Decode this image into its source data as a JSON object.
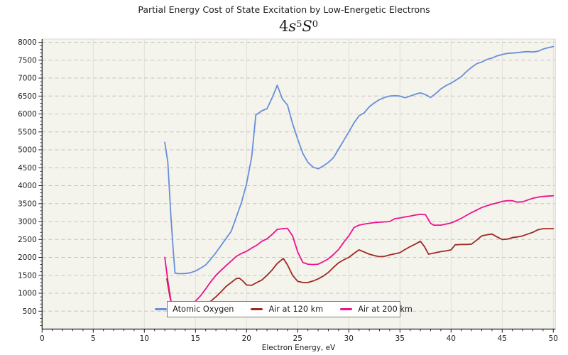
{
  "figure": {
    "title": "Partial Energy Cost of State Excitation by Low-Energetic Electrons",
    "subtitle_text": "4s⁵S⁰",
    "subtitle_parts": {
      "coef": "4",
      "var1": "s",
      "sup1": "5",
      "var2": "S",
      "sup2": "0"
    },
    "xlabel": "Electron Energy, eV"
  },
  "colors": {
    "figure_background": "#ffffff",
    "plot_background": "#f4f3ec",
    "h_gridline": "#c3c3c3",
    "v_gridline": "#e1e0d8",
    "spine_dark": "#1a1a1a",
    "spine_light": "#d9d8d0",
    "tick_text": "#1c1c1c",
    "legend_border": "#7b7b7b"
  },
  "chart_data": {
    "type": "line",
    "title": "Partial Energy Cost of State Excitation by Low-Energetic Electrons",
    "subtitle": "4s⁵S⁰",
    "xlabel": "Electron Energy, eV",
    "ylabel": "",
    "xlim": [
      0,
      50.2
    ],
    "ylim": [
      0,
      8090
    ],
    "x_major_ticks": [
      0,
      5,
      10,
      15,
      20,
      25,
      30,
      35,
      40,
      45,
      50
    ],
    "x_minor_step": 1,
    "y_major_ticks": [
      500,
      1000,
      1500,
      2000,
      2500,
      3000,
      3500,
      4000,
      4500,
      5000,
      5500,
      6000,
      6500,
      7000,
      7500,
      8000
    ],
    "y_minor_step": 100,
    "grid": {
      "horizontal_style": "dashed",
      "vertical_style": "solid"
    },
    "legend_position": "bottom-center-inside",
    "series": [
      {
        "name": "Atomic Oxygen",
        "color": "#688fdb",
        "points": [
          [
            12,
            5210
          ],
          [
            12.3,
            4650
          ],
          [
            12.6,
            3150
          ],
          [
            12.8,
            2300
          ],
          [
            13,
            1560
          ],
          [
            13.5,
            1545
          ],
          [
            14,
            1550
          ],
          [
            14.5,
            1570
          ],
          [
            15,
            1620
          ],
          [
            15.5,
            1700
          ],
          [
            16,
            1790
          ],
          [
            16.5,
            1950
          ],
          [
            17,
            2130
          ],
          [
            17.5,
            2330
          ],
          [
            18,
            2530
          ],
          [
            18.5,
            2730
          ],
          [
            19,
            3130
          ],
          [
            19.5,
            3530
          ],
          [
            20,
            4060
          ],
          [
            20.5,
            4800
          ],
          [
            20.9,
            5970
          ],
          [
            21.5,
            6090
          ],
          [
            22,
            6150
          ],
          [
            22.5,
            6450
          ],
          [
            23,
            6800
          ],
          [
            23.5,
            6420
          ],
          [
            24,
            6250
          ],
          [
            24.5,
            5730
          ],
          [
            25,
            5300
          ],
          [
            25.5,
            4900
          ],
          [
            26,
            4650
          ],
          [
            26.5,
            4520
          ],
          [
            27,
            4470
          ],
          [
            27.5,
            4550
          ],
          [
            28,
            4650
          ],
          [
            28.5,
            4780
          ],
          [
            29,
            5020
          ],
          [
            29.5,
            5260
          ],
          [
            30,
            5500
          ],
          [
            30.5,
            5750
          ],
          [
            31,
            5950
          ],
          [
            31.5,
            6030
          ],
          [
            32,
            6200
          ],
          [
            32.5,
            6310
          ],
          [
            33,
            6400
          ],
          [
            33.5,
            6460
          ],
          [
            34,
            6500
          ],
          [
            34.5,
            6510
          ],
          [
            35,
            6500
          ],
          [
            35.5,
            6450
          ],
          [
            36,
            6500
          ],
          [
            36.5,
            6550
          ],
          [
            37,
            6590
          ],
          [
            37.5,
            6540
          ],
          [
            38,
            6460
          ],
          [
            38.5,
            6570
          ],
          [
            39,
            6700
          ],
          [
            39.5,
            6790
          ],
          [
            40,
            6860
          ],
          [
            40.5,
            6950
          ],
          [
            41,
            7040
          ],
          [
            41.5,
            7180
          ],
          [
            42,
            7300
          ],
          [
            42.5,
            7400
          ],
          [
            43,
            7450
          ],
          [
            43.5,
            7520
          ],
          [
            44,
            7560
          ],
          [
            44.5,
            7620
          ],
          [
            45,
            7660
          ],
          [
            45.5,
            7690
          ],
          [
            46,
            7700
          ],
          [
            46.5,
            7710
          ],
          [
            47,
            7730
          ],
          [
            47.5,
            7740
          ],
          [
            48,
            7730
          ],
          [
            48.5,
            7750
          ],
          [
            49,
            7810
          ],
          [
            49.5,
            7850
          ],
          [
            50,
            7880
          ]
        ]
      },
      {
        "name": "Air at 120 km",
        "color": "#9c2a23",
        "points": [
          [
            12.2,
            1400
          ],
          [
            12.5,
            900
          ],
          [
            12.8,
            560
          ],
          [
            13,
            470
          ],
          [
            13.5,
            430
          ],
          [
            14,
            420
          ],
          [
            14.5,
            430
          ],
          [
            15,
            460
          ],
          [
            15.5,
            530
          ],
          [
            16,
            640
          ],
          [
            16.5,
            780
          ],
          [
            17,
            900
          ],
          [
            17.5,
            1040
          ],
          [
            18,
            1190
          ],
          [
            18.5,
            1300
          ],
          [
            19,
            1410
          ],
          [
            19.3,
            1420
          ],
          [
            19.6,
            1350
          ],
          [
            20,
            1230
          ],
          [
            20.5,
            1220
          ],
          [
            21,
            1300
          ],
          [
            21.5,
            1370
          ],
          [
            22,
            1500
          ],
          [
            22.5,
            1650
          ],
          [
            23,
            1830
          ],
          [
            23.6,
            1970
          ],
          [
            24,
            1790
          ],
          [
            24.5,
            1500
          ],
          [
            25,
            1330
          ],
          [
            25.5,
            1300
          ],
          [
            26,
            1300
          ],
          [
            26.5,
            1340
          ],
          [
            27,
            1400
          ],
          [
            27.5,
            1480
          ],
          [
            28,
            1580
          ],
          [
            28.5,
            1720
          ],
          [
            29,
            1850
          ],
          [
            29.5,
            1930
          ],
          [
            30,
            2000
          ],
          [
            30.5,
            2110
          ],
          [
            31,
            2210
          ],
          [
            31.5,
            2150
          ],
          [
            32,
            2090
          ],
          [
            32.5,
            2050
          ],
          [
            33,
            2020
          ],
          [
            33.5,
            2030
          ],
          [
            34,
            2070
          ],
          [
            34.5,
            2100
          ],
          [
            35,
            2130
          ],
          [
            35.5,
            2220
          ],
          [
            36,
            2300
          ],
          [
            36.5,
            2370
          ],
          [
            37,
            2450
          ],
          [
            37.4,
            2300
          ],
          [
            37.8,
            2090
          ],
          [
            38.5,
            2130
          ],
          [
            39,
            2160
          ],
          [
            39.5,
            2180
          ],
          [
            40,
            2210
          ],
          [
            40.4,
            2350
          ],
          [
            41,
            2360
          ],
          [
            41.5,
            2360
          ],
          [
            42,
            2370
          ],
          [
            42.5,
            2480
          ],
          [
            43,
            2600
          ],
          [
            43.5,
            2630
          ],
          [
            44,
            2650
          ],
          [
            44.5,
            2570
          ],
          [
            45,
            2500
          ],
          [
            45.5,
            2510
          ],
          [
            46,
            2550
          ],
          [
            46.5,
            2570
          ],
          [
            47,
            2600
          ],
          [
            47.5,
            2650
          ],
          [
            48,
            2700
          ],
          [
            48.5,
            2770
          ],
          [
            49,
            2800
          ],
          [
            49.5,
            2800
          ],
          [
            50,
            2800
          ]
        ]
      },
      {
        "name": "Air at 200 km",
        "color": "#ec128f",
        "points": [
          [
            12,
            2000
          ],
          [
            12.3,
            1350
          ],
          [
            12.6,
            800
          ],
          [
            13,
            530
          ],
          [
            13.5,
            470
          ],
          [
            14,
            490
          ],
          [
            14.5,
            600
          ],
          [
            15,
            780
          ],
          [
            15.5,
            930
          ],
          [
            16,
            1120
          ],
          [
            16.5,
            1320
          ],
          [
            17,
            1500
          ],
          [
            17.5,
            1640
          ],
          [
            18,
            1770
          ],
          [
            18.5,
            1900
          ],
          [
            19,
            2030
          ],
          [
            19.5,
            2110
          ],
          [
            20,
            2170
          ],
          [
            20.5,
            2260
          ],
          [
            21,
            2340
          ],
          [
            21.5,
            2450
          ],
          [
            22,
            2520
          ],
          [
            22.5,
            2640
          ],
          [
            23,
            2780
          ],
          [
            23.5,
            2800
          ],
          [
            24,
            2810
          ],
          [
            24.5,
            2600
          ],
          [
            25,
            2150
          ],
          [
            25.5,
            1860
          ],
          [
            26,
            1810
          ],
          [
            26.5,
            1800
          ],
          [
            27,
            1810
          ],
          [
            27.5,
            1880
          ],
          [
            28,
            1960
          ],
          [
            28.5,
            2080
          ],
          [
            29,
            2220
          ],
          [
            29.5,
            2420
          ],
          [
            30,
            2600
          ],
          [
            30.5,
            2830
          ],
          [
            31,
            2900
          ],
          [
            31.5,
            2930
          ],
          [
            32,
            2950
          ],
          [
            32.5,
            2970
          ],
          [
            33,
            2980
          ],
          [
            33.5,
            2990
          ],
          [
            34,
            3000
          ],
          [
            34.5,
            3080
          ],
          [
            35,
            3100
          ],
          [
            35.5,
            3130
          ],
          [
            36,
            3150
          ],
          [
            36.5,
            3180
          ],
          [
            37,
            3200
          ],
          [
            37.5,
            3190
          ],
          [
            38,
            2950
          ],
          [
            38.3,
            2900
          ],
          [
            39,
            2900
          ],
          [
            39.5,
            2930
          ],
          [
            40,
            2960
          ],
          [
            40.5,
            3020
          ],
          [
            41,
            3090
          ],
          [
            41.5,
            3170
          ],
          [
            42,
            3250
          ],
          [
            42.5,
            3320
          ],
          [
            43,
            3390
          ],
          [
            43.5,
            3440
          ],
          [
            44,
            3480
          ],
          [
            44.5,
            3520
          ],
          [
            45,
            3560
          ],
          [
            45.5,
            3580
          ],
          [
            46,
            3580
          ],
          [
            46.5,
            3540
          ],
          [
            47,
            3550
          ],
          [
            47.5,
            3600
          ],
          [
            48,
            3650
          ],
          [
            48.5,
            3680
          ],
          [
            49,
            3700
          ],
          [
            49.5,
            3710
          ],
          [
            50,
            3720
          ]
        ]
      }
    ]
  }
}
